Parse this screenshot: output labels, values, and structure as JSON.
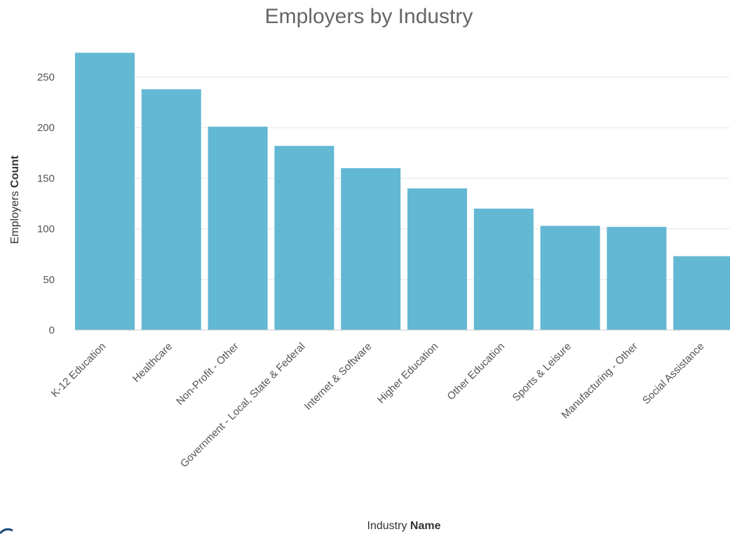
{
  "chart_data": {
    "type": "bar",
    "title": "Employers by Industry",
    "xlabel": {
      "normal": "Industry ",
      "bold": "Name"
    },
    "ylabel": {
      "normal": "Employers ",
      "bold": "Count"
    },
    "categories": [
      "K-12 Education",
      "Healthcare",
      "Non-Profit - Other",
      "Government - Local, State & Federal",
      "Internet & Software",
      "Higher Education",
      "Other Education",
      "Sports & Leisure",
      "Manufacturing - Other",
      "Social Assistance"
    ],
    "values": [
      274,
      238,
      201,
      182,
      160,
      140,
      120,
      103,
      102,
      73
    ],
    "ylim": [
      0,
      280
    ],
    "yticks": [
      0,
      50,
      100,
      150,
      200,
      250
    ],
    "grid": true,
    "legend": "none",
    "bar_color": "#63b8d3"
  }
}
